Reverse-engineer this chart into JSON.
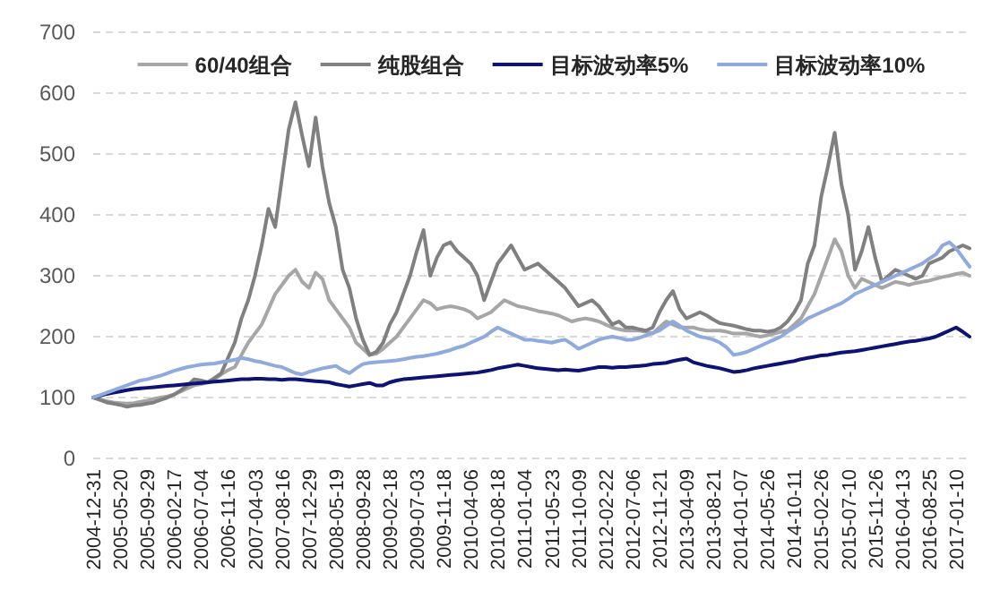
{
  "chart_data": {
    "type": "line",
    "categories": [
      "2004-12-31",
      null,
      null,
      null,
      "2005-05-20",
      null,
      null,
      null,
      "2005-09-29",
      null,
      null,
      null,
      "2006-02-17",
      null,
      null,
      null,
      "2006-07-04",
      null,
      null,
      null,
      "2006-11-16",
      null,
      null,
      null,
      "2007-04-03",
      null,
      null,
      null,
      "2007-08-16",
      null,
      null,
      null,
      "2007-12-29",
      null,
      null,
      null,
      "2008-05-19",
      null,
      null,
      null,
      "2008-09-28",
      null,
      null,
      null,
      "2009-02-18",
      null,
      null,
      null,
      "2009-07-03",
      null,
      null,
      null,
      "2009-11-18",
      null,
      null,
      null,
      "2010-04-06",
      null,
      null,
      null,
      "2010-08-18",
      null,
      null,
      null,
      "2011-01-04",
      null,
      null,
      null,
      "2011-05-23",
      null,
      null,
      null,
      "2011-10-09",
      null,
      null,
      null,
      "2012-02-22",
      null,
      null,
      null,
      "2012-07-06",
      null,
      null,
      null,
      "2012-11-21",
      null,
      null,
      null,
      "2013-04-09",
      null,
      null,
      null,
      "2013-08-21",
      null,
      null,
      null,
      "2014-01-07",
      null,
      null,
      null,
      "2014-05-26",
      null,
      null,
      null,
      "2014-10-11",
      null,
      null,
      null,
      "2015-02-26",
      null,
      null,
      null,
      "2015-07-10",
      null,
      null,
      null,
      "2015-11-26",
      null,
      null,
      null,
      "2016-04-13",
      null,
      null,
      null,
      "2016-08-25",
      null,
      null,
      null,
      "2017-01-10",
      null,
      null
    ],
    "series": [
      {
        "name": "60/40组合",
        "color": "#a6a6a6",
        "values": [
          100,
          97,
          94,
          92,
          91,
          90,
          91,
          93,
          95,
          98,
          100,
          102,
          105,
          110,
          115,
          120,
          122,
          125,
          130,
          138,
          145,
          150,
          170,
          190,
          205,
          220,
          245,
          270,
          285,
          300,
          310,
          290,
          280,
          305,
          295,
          260,
          245,
          230,
          215,
          190,
          180,
          170,
          172,
          180,
          190,
          200,
          215,
          230,
          245,
          260,
          255,
          245,
          248,
          250,
          248,
          245,
          240,
          230,
          235,
          240,
          250,
          260,
          255,
          250,
          248,
          245,
          242,
          240,
          238,
          235,
          230,
          225,
          228,
          230,
          228,
          225,
          220,
          215,
          212,
          210,
          210,
          210,
          208,
          205,
          215,
          225,
          220,
          215,
          215,
          215,
          212,
          210,
          210,
          210,
          208,
          205,
          205,
          205,
          202,
          200,
          202,
          205,
          208,
          210,
          220,
          230,
          250,
          270,
          300,
          330,
          360,
          340,
          300,
          280,
          295,
          290,
          285,
          280,
          285,
          290,
          288,
          285,
          288,
          290,
          292,
          295,
          298,
          300,
          303,
          305,
          300
        ]
      },
      {
        "name": "纯股组合",
        "color": "#808080",
        "values": [
          100,
          96,
          92,
          90,
          88,
          85,
          87,
          88,
          90,
          92,
          96,
          100,
          105,
          112,
          120,
          130,
          128,
          125,
          132,
          140,
          165,
          190,
          230,
          260,
          300,
          350,
          410,
          380,
          460,
          540,
          585,
          530,
          480,
          560,
          480,
          420,
          380,
          310,
          280,
          230,
          195,
          170,
          175,
          190,
          220,
          240,
          270,
          300,
          340,
          375,
          300,
          330,
          350,
          355,
          340,
          330,
          320,
          300,
          260,
          290,
          320,
          335,
          350,
          330,
          310,
          315,
          320,
          310,
          300,
          290,
          280,
          265,
          250,
          255,
          260,
          250,
          235,
          220,
          225,
          215,
          215,
          212,
          210,
          215,
          240,
          260,
          275,
          245,
          230,
          235,
          240,
          235,
          228,
          222,
          220,
          218,
          215,
          212,
          210,
          210,
          208,
          210,
          215,
          225,
          240,
          260,
          320,
          350,
          430,
          480,
          535,
          450,
          400,
          310,
          340,
          380,
          330,
          290,
          300,
          310,
          305,
          300,
          295,
          300,
          320,
          325,
          330,
          340,
          345,
          350,
          345
        ]
      },
      {
        "name": "目标波动率5%",
        "color": "#0d1273",
        "values": [
          100,
          103,
          106,
          108,
          110,
          112,
          114,
          115,
          116,
          117,
          118,
          119,
          120,
          121,
          122,
          123,
          124,
          125,
          126,
          127,
          128,
          129,
          130,
          130,
          131,
          131,
          130,
          130,
          129,
          130,
          130,
          129,
          128,
          127,
          126,
          125,
          122,
          120,
          118,
          120,
          122,
          124,
          120,
          120,
          125,
          128,
          130,
          131,
          132,
          133,
          134,
          135,
          136,
          137,
          138,
          139,
          140,
          141,
          143,
          145,
          148,
          150,
          152,
          154,
          152,
          150,
          148,
          147,
          146,
          145,
          146,
          145,
          144,
          146,
          148,
          150,
          150,
          149,
          150,
          150,
          151,
          152,
          153,
          155,
          156,
          157,
          160,
          162,
          164,
          158,
          155,
          152,
          150,
          148,
          145,
          142,
          143,
          145,
          148,
          150,
          152,
          154,
          156,
          158,
          160,
          163,
          165,
          167,
          169,
          170,
          172,
          174,
          175,
          176,
          178,
          180,
          182,
          184,
          186,
          188,
          190,
          192,
          193,
          195,
          197,
          200,
          205,
          210,
          215,
          208,
          200
        ]
      },
      {
        "name": "目标波动率10%",
        "color": "#8faadc",
        "values": [
          100,
          104,
          108,
          112,
          116,
          120,
          124,
          128,
          130,
          133,
          136,
          140,
          144,
          147,
          150,
          152,
          154,
          155,
          156,
          158,
          160,
          162,
          165,
          163,
          160,
          158,
          155,
          152,
          150,
          145,
          140,
          138,
          142,
          145,
          148,
          150,
          152,
          145,
          140,
          148,
          155,
          157,
          158,
          159,
          160,
          161,
          163,
          165,
          167,
          168,
          170,
          172,
          175,
          178,
          182,
          185,
          190,
          195,
          200,
          208,
          215,
          210,
          205,
          200,
          195,
          195,
          193,
          192,
          190,
          193,
          195,
          188,
          180,
          185,
          190,
          195,
          198,
          200,
          198,
          195,
          195,
          198,
          202,
          206,
          210,
          218,
          225,
          218,
          210,
          205,
          200,
          198,
          195,
          190,
          182,
          170,
          172,
          175,
          180,
          185,
          190,
          195,
          200,
          208,
          215,
          222,
          230,
          235,
          240,
          245,
          250,
          255,
          262,
          270,
          275,
          280,
          285,
          290,
          295,
          300,
          305,
          310,
          315,
          320,
          328,
          335,
          350,
          355,
          345,
          330,
          315
        ]
      }
    ],
    "ylim": [
      0,
      700
    ],
    "yticks": [
      0,
      100,
      200,
      300,
      400,
      500,
      600,
      700
    ],
    "grid": "y",
    "legend": "top",
    "line_style": "solid"
  }
}
